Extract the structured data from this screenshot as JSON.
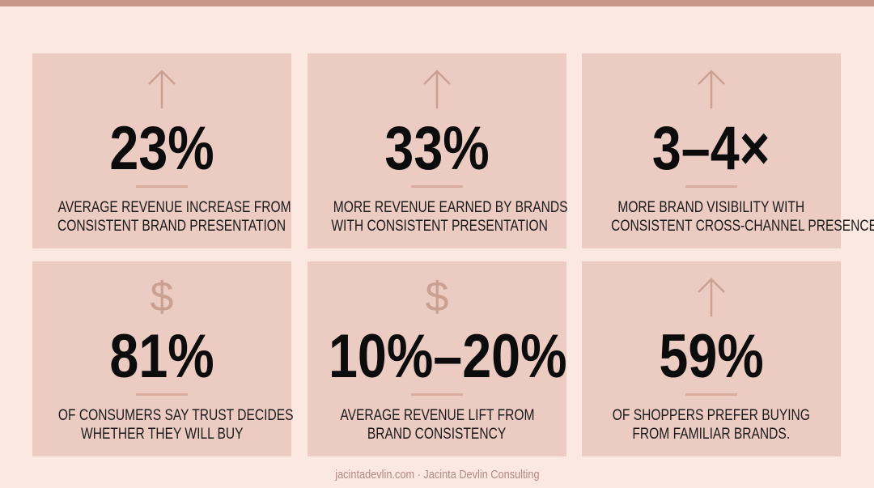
{
  "cards": [
    {
      "stat": "23%",
      "lines": [
        "AVERAGE REVENUE INCREASE FROM",
        "CONSISTENT BRAND PRESENTATION"
      ]
    },
    {
      "stat": "33%",
      "lines": [
        "MORE REVENUE EARNED BY BRANDS",
        "WITH CONSISTENT PRESENTATION"
      ]
    },
    {
      "stat": "3–4×",
      "lines": [
        "MORE BRAND VISIBILITY WITH",
        "CONSISTENT CROSS-CHANNEL PRESENCE"
      ]
    },
    {
      "icon": "$",
      "stat": "81%",
      "lines": [
        "OF CONSUMERS SAY TRUST DECIDES",
        "WHETHER THEY WILL BUY"
      ]
    },
    {
      "icon": "$",
      "stat": "10%–20%",
      "lines": [
        "AVERAGE REVENUE LIFT FROM",
        "BRAND CONSISTENCY"
      ]
    },
    {
      "stat": "59%",
      "lines": [
        "OF SHOPPERS PREFER BUYING",
        "FROM FAMILIAR BRANDS."
      ]
    }
  ],
  "footer": "jacintadevlin.com · Jacinta Devlin Consulting"
}
